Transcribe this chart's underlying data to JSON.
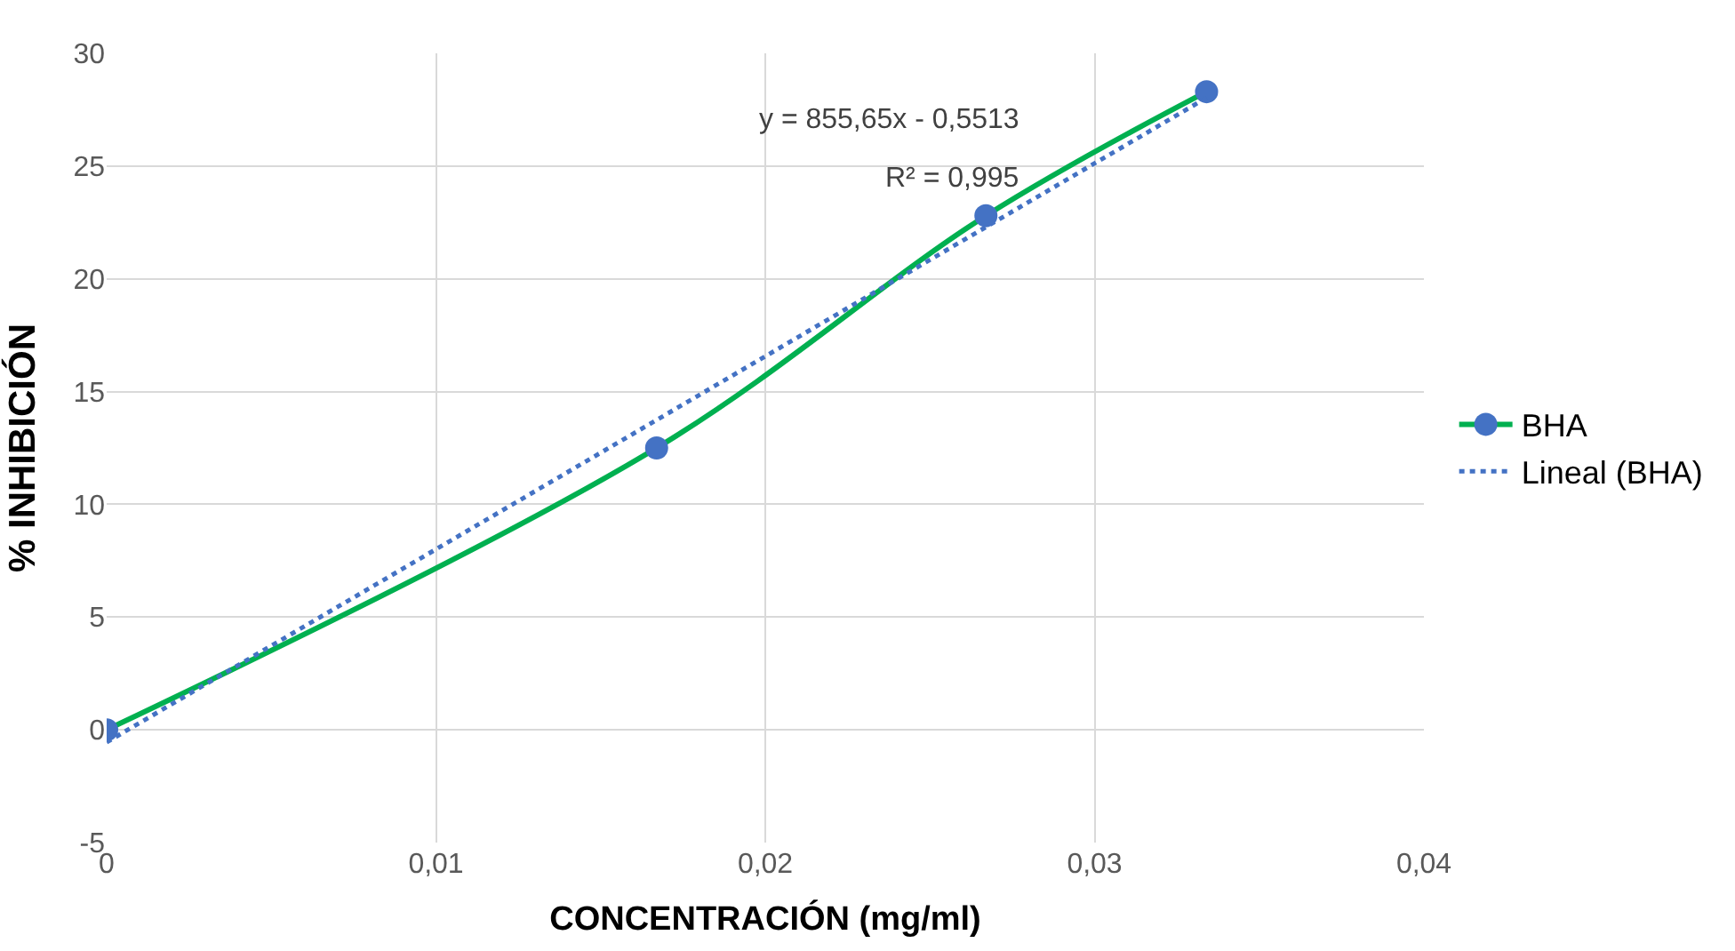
{
  "chart_data": {
    "type": "line",
    "xlabel": "CONCENTRACIÓN (mg/ml)",
    "ylabel": "% INHIBICIÓN",
    "series": [
      {
        "name": "BHA",
        "color": "#00b050",
        "colors": [
          "#4472c4",
          "#4472c4",
          "#4472c4",
          "#4472c4"
        ],
        "marker": "circle",
        "line_style": "solid",
        "x": [
          0,
          0.0167,
          0.0267,
          0.0334
        ],
        "values": [
          0,
          12.5,
          22.8,
          28.3
        ]
      },
      {
        "name": "Lineal (BHA)",
        "color": "#4472c4",
        "marker": "none",
        "line_style": "dotted",
        "x": [
          0,
          0.0334
        ],
        "values": [
          -0.55,
          28.03
        ]
      }
    ],
    "annotations": [
      "y = 855,65x - 0,5513",
      "R² = 0,995"
    ],
    "xlim": [
      0,
      0.04
    ],
    "ylim": [
      -5,
      30
    ],
    "xticks": [
      0,
      {
        "value": 0.01,
        "label": "0,01"
      },
      {
        "value": 0.02,
        "label": "0,02"
      },
      {
        "value": 0.03,
        "label": "0,03"
      },
      {
        "value": 0.04,
        "label": "0,04"
      }
    ],
    "yticks": [
      -5,
      0,
      5,
      10,
      15,
      20,
      25,
      30
    ],
    "grid": true,
    "legend": "right"
  }
}
